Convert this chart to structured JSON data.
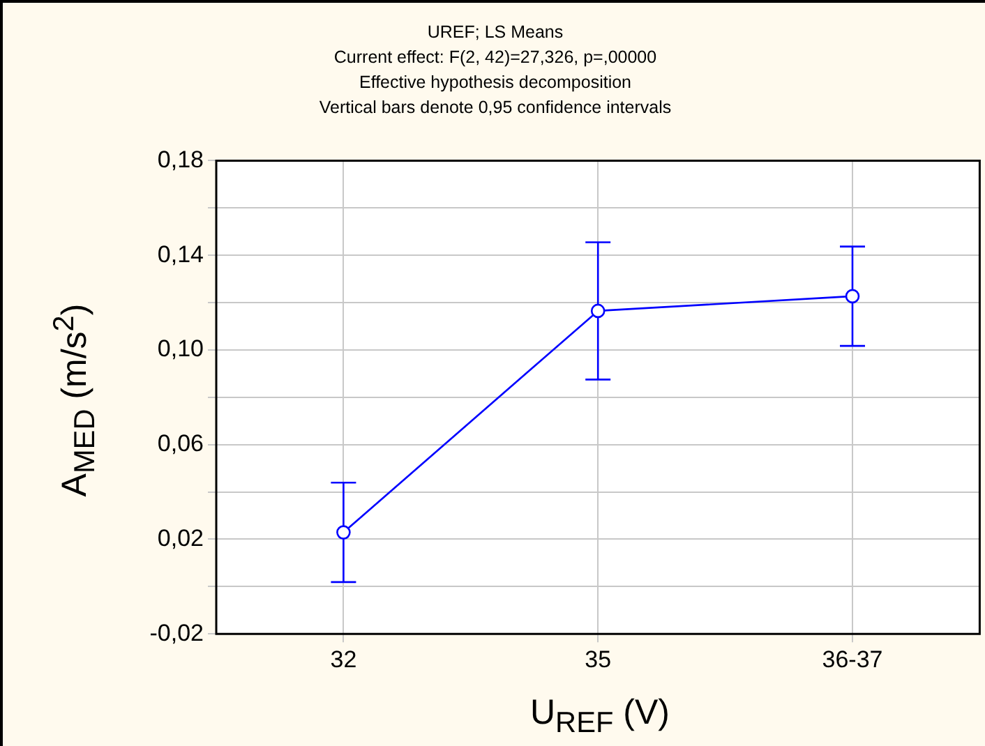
{
  "chart_data": {
    "type": "line",
    "title": "UREF; LS Means",
    "subtitle": "Current effect: F(2, 42)=27,326, p=,00000",
    "annotations": [
      "Effective hypothesis decomposition",
      "Vertical bars denote 0,95 confidence intervals"
    ],
    "xlabel": "U$_{REF}$ (V)",
    "ylabel": "A$_{MED}$ (m/s$^{2}$)",
    "categories": [
      "32",
      "35",
      "36-37"
    ],
    "series": [
      {
        "color": "#0000ff",
        "values": [
          0.0229,
          0.1165,
          0.1227
        ],
        "errors": [
          0.021,
          0.029,
          0.021
        ]
      }
    ],
    "ylim": [
      -0.02,
      0.18
    ],
    "yticks": [
      {
        "value": -0.02,
        "label": "-0,02"
      },
      {
        "value": 0,
        "label": null
      },
      {
        "value": 0.02,
        "label": "0,02"
      },
      {
        "value": 0.04,
        "label": null
      },
      {
        "value": 0.06,
        "label": "0,06"
      },
      {
        "value": 0.08,
        "label": null
      },
      {
        "value": 0.1,
        "label": "0,10"
      },
      {
        "value": 0.12,
        "label": null
      },
      {
        "value": 0.14,
        "label": "0,14"
      },
      {
        "value": 0.16,
        "label": null
      },
      {
        "value": 0.18,
        "label": "0,18"
      }
    ],
    "grid": true,
    "marker": "circle",
    "line_style": "solid"
  }
}
